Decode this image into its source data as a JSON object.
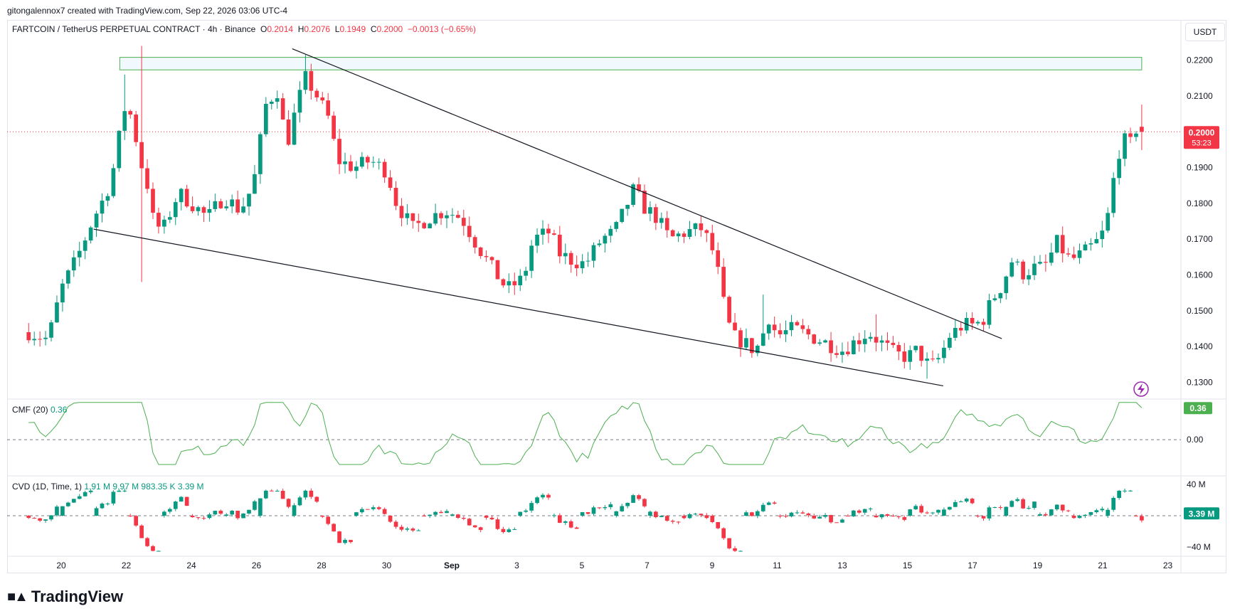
{
  "credit": "gitongalennox7 created with TradingView.com, Sep 22, 2026 03:06 UTC-4",
  "legend": {
    "symbol": "FARTCOIN / TetherUS PERPETUAL CONTRACT · 4h · Binance",
    "o_label": "O",
    "o": "0.2014",
    "h_label": "H",
    "h": "0.2076",
    "l_label": "L",
    "l": "0.1949",
    "c_label": "C",
    "c": "0.2000",
    "change": "−0.0013 (−0.65%)"
  },
  "currency_button": "USDT",
  "price_tag": {
    "price": "0.2000",
    "countdown": "53:23"
  },
  "cmf": {
    "label": "CMF (20)",
    "value": "0.36",
    "tag": "0.36"
  },
  "cvd": {
    "label": "CVD (1D, Time, 1)",
    "v1": "1.91 M",
    "v2": "9.97 M",
    "v3": "983.35 K",
    "v4": "3.39 M",
    "tag": "3.39 M"
  },
  "brand": "TradingView",
  "icons": {
    "lightning": "lightning-icon",
    "logo": "tradingview-logo-icon"
  },
  "colors": {
    "up": "#089981",
    "down": "#f23645",
    "cmf": "#4caf50",
    "zone": "#4caf50"
  },
  "chart_data": {
    "type": "candlestick",
    "title": "FARTCOIN / TetherUS PERPETUAL CONTRACT · 4h · Binance",
    "price_axis": {
      "ticks": [
        "0.2200",
        "0.2100",
        "0.2000",
        "0.1900",
        "0.1800",
        "0.1700",
        "0.1600",
        "0.1500",
        "0.1400",
        "0.1300"
      ],
      "range": [
        0.1275,
        0.2245
      ]
    },
    "cmf_axis": {
      "ticks": [
        "0.00"
      ],
      "range": [
        -0.4,
        0.45
      ]
    },
    "cvd_axis": {
      "ticks": [
        "40 M",
        "−40 M"
      ],
      "range": [
        -50,
        50
      ]
    },
    "x_axis": {
      "labels": [
        "20",
        "22",
        "24",
        "26",
        "28",
        "30",
        "Sep",
        "3",
        "5",
        "7",
        "9",
        "11",
        "13",
        "15",
        "17",
        "19",
        "21",
        "23"
      ],
      "range": [
        19,
        23.9
      ]
    },
    "resistance_zone": {
      "low": 0.2173,
      "high": 0.2208,
      "from_day": 21.8,
      "to_day": 53.2
    },
    "trendlines": [
      {
        "name": "upper",
        "from": [
          27.1,
          0.2232
        ],
        "to": [
          48.9,
          0.1422
        ]
      },
      {
        "name": "lower",
        "from": [
          21.0,
          0.1728
        ],
        "to": [
          47.1,
          0.129
        ]
      }
    ],
    "anchors": [
      {
        "d": 19.0,
        "p": 0.144
      },
      {
        "d": 19.6,
        "p": 0.142
      },
      {
        "d": 20.0,
        "p": 0.156
      },
      {
        "d": 20.5,
        "p": 0.165
      },
      {
        "d": 21.0,
        "p": 0.176
      },
      {
        "d": 21.4,
        "p": 0.183
      },
      {
        "d": 21.7,
        "p": 0.193
      },
      {
        "d": 21.9,
        "p": 0.207
      },
      {
        "d": 22.2,
        "p": 0.204
      },
      {
        "d": 22.4,
        "p": 0.192
      },
      {
        "d": 22.6,
        "p": 0.188
      },
      {
        "d": 22.8,
        "p": 0.176
      },
      {
        "d": 23.1,
        "p": 0.172
      },
      {
        "d": 23.6,
        "p": 0.183
      },
      {
        "d": 24.0,
        "p": 0.18
      },
      {
        "d": 24.5,
        "p": 0.176
      },
      {
        "d": 25.0,
        "p": 0.182
      },
      {
        "d": 25.5,
        "p": 0.178
      },
      {
        "d": 25.9,
        "p": 0.185
      },
      {
        "d": 26.3,
        "p": 0.208
      },
      {
        "d": 26.7,
        "p": 0.212
      },
      {
        "d": 26.9,
        "p": 0.195
      },
      {
        "d": 27.2,
        "p": 0.206
      },
      {
        "d": 27.5,
        "p": 0.215
      },
      {
        "d": 27.8,
        "p": 0.211
      },
      {
        "d": 28.2,
        "p": 0.204
      },
      {
        "d": 28.5,
        "p": 0.192
      },
      {
        "d": 29.0,
        "p": 0.19
      },
      {
        "d": 29.5,
        "p": 0.192
      },
      {
        "d": 30.0,
        "p": 0.189
      },
      {
        "d": 30.3,
        "p": 0.18
      },
      {
        "d": 30.8,
        "p": 0.173
      },
      {
        "d": 31.3,
        "p": 0.176
      },
      {
        "d": 31.8,
        "p": 0.178
      },
      {
        "d": 32.3,
        "p": 0.176
      },
      {
        "d": 32.8,
        "p": 0.168
      },
      {
        "d": 33.3,
        "p": 0.161
      },
      {
        "d": 33.7,
        "p": 0.156
      },
      {
        "d": 34.2,
        "p": 0.159
      },
      {
        "d": 34.5,
        "p": 0.17
      },
      {
        "d": 35.0,
        "p": 0.172
      },
      {
        "d": 35.3,
        "p": 0.166
      },
      {
        "d": 35.7,
        "p": 0.164
      },
      {
        "d": 36.1,
        "p": 0.163
      },
      {
        "d": 36.6,
        "p": 0.17
      },
      {
        "d": 37.0,
        "p": 0.172
      },
      {
        "d": 37.3,
        "p": 0.178
      },
      {
        "d": 37.6,
        "p": 0.184
      },
      {
        "d": 37.9,
        "p": 0.179
      },
      {
        "d": 38.3,
        "p": 0.176
      },
      {
        "d": 38.7,
        "p": 0.17
      },
      {
        "d": 39.2,
        "p": 0.172
      },
      {
        "d": 39.7,
        "p": 0.173
      },
      {
        "d": 40.1,
        "p": 0.165
      },
      {
        "d": 40.3,
        "p": 0.154
      },
      {
        "d": 40.6,
        "p": 0.143
      },
      {
        "d": 41.0,
        "p": 0.141
      },
      {
        "d": 41.3,
        "p": 0.139
      },
      {
        "d": 41.5,
        "p": 0.141
      },
      {
        "d": 41.7,
        "p": 0.149
      },
      {
        "d": 42.0,
        "p": 0.143
      },
      {
        "d": 42.5,
        "p": 0.145
      },
      {
        "d": 43.0,
        "p": 0.143
      },
      {
        "d": 43.5,
        "p": 0.141
      },
      {
        "d": 44.0,
        "p": 0.139
      },
      {
        "d": 44.5,
        "p": 0.142
      },
      {
        "d": 44.8,
        "p": 0.144
      },
      {
        "d": 45.2,
        "p": 0.141
      },
      {
        "d": 45.6,
        "p": 0.138
      },
      {
        "d": 46.0,
        "p": 0.137
      },
      {
        "d": 46.3,
        "p": 0.139
      },
      {
        "d": 46.7,
        "p": 0.134
      },
      {
        "d": 47.0,
        "p": 0.137
      },
      {
        "d": 47.3,
        "p": 0.143
      },
      {
        "d": 47.7,
        "p": 0.146
      },
      {
        "d": 48.0,
        "p": 0.146
      },
      {
        "d": 48.3,
        "p": 0.147
      },
      {
        "d": 48.6,
        "p": 0.153
      },
      {
        "d": 48.9,
        "p": 0.157
      },
      {
        "d": 49.2,
        "p": 0.164
      },
      {
        "d": 49.6,
        "p": 0.16
      },
      {
        "d": 49.8,
        "p": 0.162
      },
      {
        "d": 50.2,
        "p": 0.162
      },
      {
        "d": 50.6,
        "p": 0.169
      },
      {
        "d": 51.0,
        "p": 0.164
      },
      {
        "d": 51.4,
        "p": 0.166
      },
      {
        "d": 51.8,
        "p": 0.169
      },
      {
        "d": 52.1,
        "p": 0.173
      },
      {
        "d": 52.3,
        "p": 0.185
      },
      {
        "d": 52.6,
        "p": 0.199
      },
      {
        "d": 52.8,
        "p": 0.195
      },
      {
        "d": 53.0,
        "p": 0.201
      },
      {
        "d": 53.2,
        "p": 0.2
      }
    ],
    "candle_count": 198,
    "seed": 7
  }
}
